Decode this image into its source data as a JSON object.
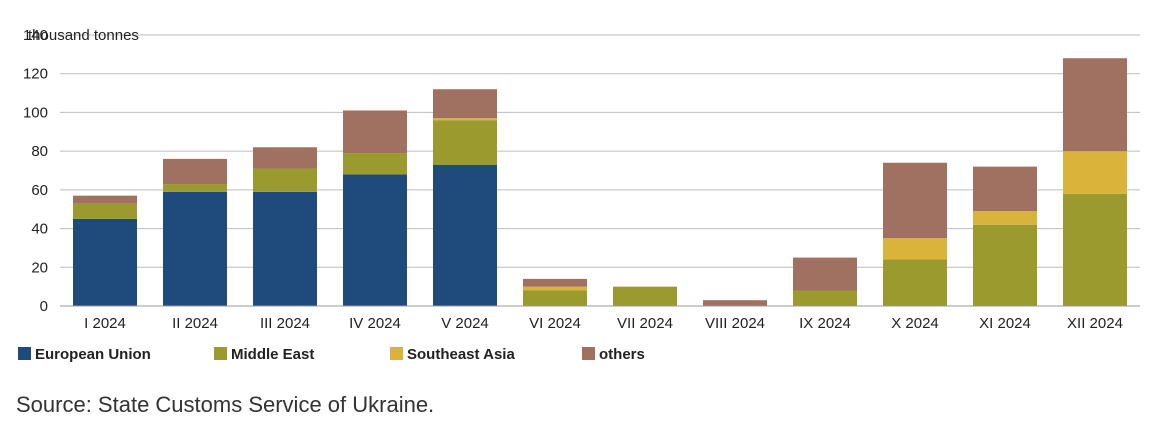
{
  "chart_data": {
    "type": "bar",
    "stacked": true,
    "ylabel": "thousand tonnes",
    "ylim": [
      0,
      140
    ],
    "yticks": [
      0,
      20,
      40,
      60,
      80,
      100,
      120,
      140
    ],
    "grid": true,
    "legend_position": "bottom-left",
    "categories": [
      "I 2024",
      "II 2024",
      "III 2024",
      "IV 2024",
      "V 2024",
      "VI 2024",
      "VII 2024",
      "VIII 2024",
      "IX 2024",
      "X 2024",
      "XI 2024",
      "XII 2024"
    ],
    "series": [
      {
        "name": "European Union",
        "color": "#1f4a7c",
        "values": [
          45,
          59,
          59,
          68,
          73,
          0,
          0,
          0,
          0,
          0,
          0,
          0
        ]
      },
      {
        "name": "Middle East",
        "color": "#9a9a2e",
        "values": [
          8,
          4,
          12,
          11,
          23,
          8,
          10,
          0,
          8,
          24,
          42,
          58
        ]
      },
      {
        "name": "Southeast Asia",
        "color": "#dab33a",
        "values": [
          0,
          0,
          0,
          0,
          1,
          2,
          0,
          0,
          0,
          11,
          7,
          22
        ]
      },
      {
        "name": "others",
        "color": "#a07060",
        "values": [
          4,
          13,
          11,
          22,
          15,
          4,
          0,
          3,
          17,
          39,
          23,
          48
        ]
      }
    ]
  },
  "source": "Source: State Customs Service of Ukraine."
}
